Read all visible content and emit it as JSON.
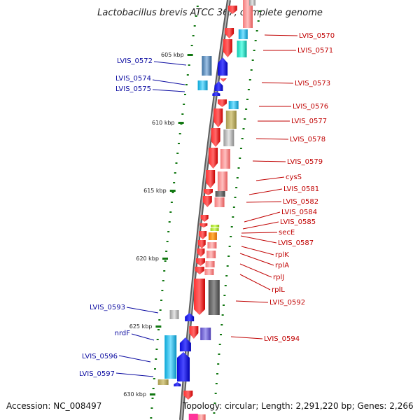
{
  "title": "Lactobacillus brevis ATCC 367, complete genome",
  "footer": {
    "accession": "Accession: NC_008497",
    "topology": "Topology: circular; Length: 2,291,220 bp; Genes: 2,266"
  },
  "position_ticks": [
    "605 kbp",
    "610 kbp",
    "615 kbp",
    "620 kbp",
    "625 kbp",
    "630 kbp"
  ],
  "left_genes": [
    "LVIS_0572",
    "LVIS_0574",
    "LVIS_0575",
    "LVIS_0593",
    "nrdF",
    "LVIS_0596",
    "LVIS_0597"
  ],
  "right_genes": [
    "LVIS_0570",
    "LVIS_0571",
    "LVIS_0573",
    "LVIS_0576",
    "LVIS_0577",
    "LVIS_0578",
    "LVIS_0579",
    "cysS",
    "LVIS_0581",
    "LVIS_0582",
    "LVIS_0584",
    "LVIS_0585",
    "secE",
    "LVIS_0587",
    "rplK",
    "rplA",
    "rplJ",
    "rplL",
    "LVIS_0592",
    "LVIS_0594"
  ],
  "colors": {
    "forward_strand": "#ee1111",
    "reverse_strand": "#1111dd",
    "backbone": "#8a8a8a",
    "tick": "#117711",
    "left_label": "#0a0aa0",
    "right_label": "#c00000"
  }
}
